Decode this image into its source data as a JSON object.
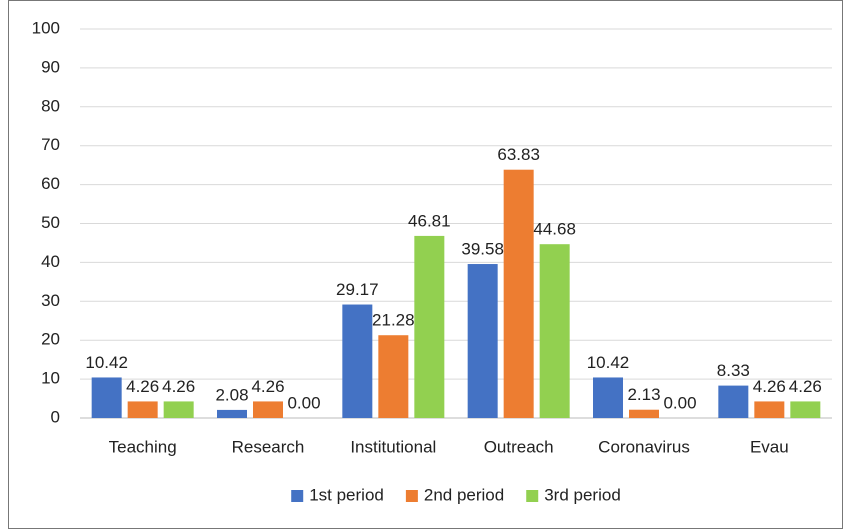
{
  "chart_data": {
    "type": "bar",
    "categories": [
      "Teaching",
      "Research",
      "Institutional",
      "Outreach",
      "Coronavirus",
      "Evau"
    ],
    "series": [
      {
        "name": "1st period",
        "color": "#4472c4",
        "values": [
          10.42,
          2.08,
          29.17,
          39.58,
          10.42,
          8.33
        ],
        "value_labels": [
          "10.42",
          "2.08",
          "29.17",
          "39.58",
          "10.42",
          "8.33"
        ]
      },
      {
        "name": "2nd period",
        "color": "#ed7d31",
        "values": [
          4.26,
          4.26,
          21.28,
          63.83,
          2.13,
          4.26
        ],
        "value_labels": [
          "4.26",
          "4.26",
          "21.28",
          "63.83",
          "2.13",
          "4.26"
        ]
      },
      {
        "name": "3rd period",
        "color": "#92d050",
        "values": [
          4.26,
          0,
          46.81,
          44.68,
          0,
          4.26
        ],
        "value_labels": [
          "4.26",
          "0.00",
          "46.81",
          "44.68",
          "0.00",
          "4.26"
        ]
      }
    ],
    "ylim": [
      0,
      100
    ],
    "yticks": [
      0,
      10,
      20,
      30,
      40,
      50,
      60,
      70,
      80,
      90,
      100
    ],
    "grid": true,
    "legend": "bottom"
  }
}
